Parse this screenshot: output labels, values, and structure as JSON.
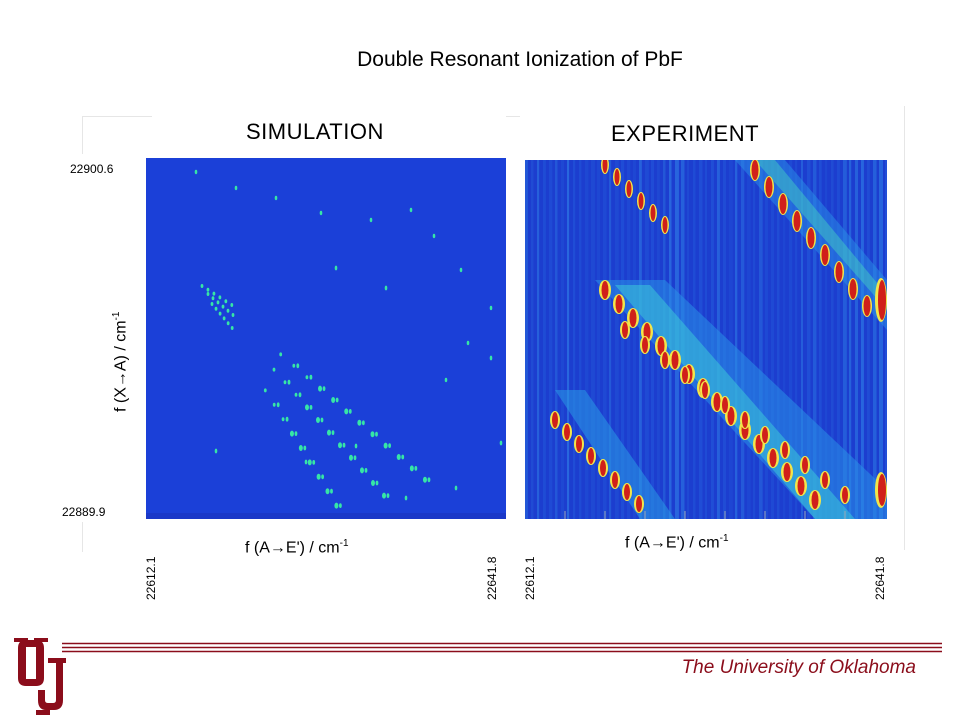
{
  "slide": {
    "title": "Double Resonant Ionization of PbF",
    "footer": "The University of Oklahoma",
    "brand_color": "#8b0d1b"
  },
  "simulation": {
    "title": "SIMULATION",
    "y_top": "22900.6",
    "y_bottom": "22889.9",
    "x_left": "22612.1",
    "x_right": "22641.8",
    "x_label": "f (A→E') / cm",
    "x_label_exp": "-1",
    "y_label": "f (X→A) / cm",
    "y_label_exp": "-1"
  },
  "experiment": {
    "title": "EXPERIMENT",
    "x_left": "22612.1",
    "x_right": "22641.8",
    "x_label": "f (A→E') / cm",
    "x_label_exp": "-1"
  },
  "logo": {
    "text": "OU",
    "icon": "ou-logo-icon"
  }
}
